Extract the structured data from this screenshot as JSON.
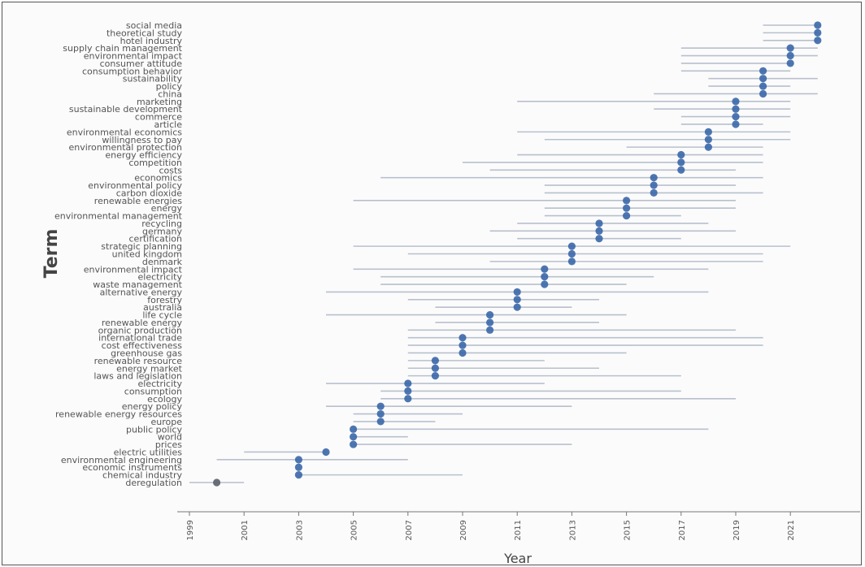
{
  "chart_data": {
    "type": "scatter",
    "title": "",
    "xlabel": "Year",
    "ylabel": "Term",
    "xlim": [
      1999,
      2023.5
    ],
    "x_ticks": [
      1999,
      2001,
      2003,
      2005,
      2007,
      2009,
      2011,
      2013,
      2015,
      2017,
      2019,
      2021
    ],
    "grid": false,
    "colors": {
      "point": "#3a67a8",
      "range": "#b8c0cc",
      "early_point": "#5a6068"
    },
    "points": [
      {
        "term": "social media",
        "start": 2020,
        "median": 2022,
        "end": 2022
      },
      {
        "term": "theoretical study",
        "start": 2020,
        "median": 2022,
        "end": 2022
      },
      {
        "term": "hotel industry",
        "start": 2020,
        "median": 2022,
        "end": 2022
      },
      {
        "term": "supply chain management",
        "start": 2017,
        "median": 2021,
        "end": 2022
      },
      {
        "term": "environmental impact",
        "start": 2017,
        "median": 2021,
        "end": 2022
      },
      {
        "term": "consumer attitude",
        "start": 2017,
        "median": 2021,
        "end": 2021
      },
      {
        "term": "consumption behavior",
        "start": 2017,
        "median": 2020,
        "end": 2021
      },
      {
        "term": "sustainability",
        "start": 2018,
        "median": 2020,
        "end": 2022
      },
      {
        "term": "policy",
        "start": 2018,
        "median": 2020,
        "end": 2021
      },
      {
        "term": "china",
        "start": 2016,
        "median": 2020,
        "end": 2022
      },
      {
        "term": "marketing",
        "start": 2011,
        "median": 2019,
        "end": 2021
      },
      {
        "term": "sustainable development",
        "start": 2016,
        "median": 2019,
        "end": 2021
      },
      {
        "term": "commerce",
        "start": 2017,
        "median": 2019,
        "end": 2021
      },
      {
        "term": "article",
        "start": 2017,
        "median": 2019,
        "end": 2020
      },
      {
        "term": "environmental economics",
        "start": 2011,
        "median": 2018,
        "end": 2021
      },
      {
        "term": "willingness to pay",
        "start": 2012,
        "median": 2018,
        "end": 2021
      },
      {
        "term": "environmental protection",
        "start": 2015,
        "median": 2018,
        "end": 2020
      },
      {
        "term": "energy efficiency",
        "start": 2011,
        "median": 2017,
        "end": 2020
      },
      {
        "term": "competition",
        "start": 2009,
        "median": 2017,
        "end": 2020
      },
      {
        "term": "costs",
        "start": 2010,
        "median": 2017,
        "end": 2019
      },
      {
        "term": "economics",
        "start": 2006,
        "median": 2016,
        "end": 2020
      },
      {
        "term": "environmental policy",
        "start": 2012,
        "median": 2016,
        "end": 2019
      },
      {
        "term": "carbon dioxide",
        "start": 2012,
        "median": 2016,
        "end": 2020
      },
      {
        "term": "renewable energies",
        "start": 2005,
        "median": 2015,
        "end": 2019
      },
      {
        "term": "energy",
        "start": 2012,
        "median": 2015,
        "end": 2019
      },
      {
        "term": "environmental management",
        "start": 2012,
        "median": 2015,
        "end": 2017
      },
      {
        "term": "recycling",
        "start": 2011,
        "median": 2014,
        "end": 2018
      },
      {
        "term": "germany",
        "start": 2010,
        "median": 2014,
        "end": 2019
      },
      {
        "term": "certification",
        "start": 2011,
        "median": 2014,
        "end": 2017
      },
      {
        "term": "strategic planning",
        "start": 2005,
        "median": 2013,
        "end": 2021
      },
      {
        "term": "united kingdom",
        "start": 2007,
        "median": 2013,
        "end": 2020
      },
      {
        "term": "denmark",
        "start": 2010,
        "median": 2013,
        "end": 2020
      },
      {
        "term": "environmental impact",
        "start": 2005,
        "median": 2012,
        "end": 2018
      },
      {
        "term": "electricity",
        "start": 2006,
        "median": 2012,
        "end": 2016
      },
      {
        "term": "waste management",
        "start": 2006,
        "median": 2012,
        "end": 2015
      },
      {
        "term": "alternative energy",
        "start": 2004,
        "median": 2011,
        "end": 2018
      },
      {
        "term": "forestry",
        "start": 2007,
        "median": 2011,
        "end": 2014
      },
      {
        "term": "australia",
        "start": 2008,
        "median": 2011,
        "end": 2013
      },
      {
        "term": "life cycle",
        "start": 2004,
        "median": 2010,
        "end": 2015
      },
      {
        "term": "renewable energy",
        "start": 2008,
        "median": 2010,
        "end": 2014
      },
      {
        "term": "organic production",
        "start": 2007,
        "median": 2010,
        "end": 2019
      },
      {
        "term": "international trade",
        "start": 2007,
        "median": 2009,
        "end": 2020
      },
      {
        "term": "cost effectiveness",
        "start": 2007,
        "median": 2009,
        "end": 2020
      },
      {
        "term": "greenhouse gas",
        "start": 2007,
        "median": 2009,
        "end": 2015
      },
      {
        "term": "renewable resource",
        "start": 2007,
        "median": 2008,
        "end": 2012
      },
      {
        "term": "energy market",
        "start": 2007,
        "median": 2008,
        "end": 2014
      },
      {
        "term": "laws and legislation",
        "start": 2007,
        "median": 2008,
        "end": 2017
      },
      {
        "term": "electricity",
        "start": 2004,
        "median": 2007,
        "end": 2012
      },
      {
        "term": "consumption",
        "start": 2006,
        "median": 2007,
        "end": 2017
      },
      {
        "term": "ecology",
        "start": 2006,
        "median": 2007,
        "end": 2019
      },
      {
        "term": "energy policy",
        "start": 2004,
        "median": 2006,
        "end": 2013
      },
      {
        "term": "renewable energy resources",
        "start": 2005,
        "median": 2006,
        "end": 2009
      },
      {
        "term": "europe",
        "start": 2005,
        "median": 2006,
        "end": 2008
      },
      {
        "term": "public policy",
        "start": 2005,
        "median": 2005,
        "end": 2018
      },
      {
        "term": "world",
        "start": 2005,
        "median": 2005,
        "end": 2007
      },
      {
        "term": "prices",
        "start": 2005,
        "median": 2005,
        "end": 2013
      },
      {
        "term": "electric utilities",
        "start": 2001,
        "median": 2004,
        "end": 2004
      },
      {
        "term": "environmental engineering",
        "start": 2000,
        "median": 2003,
        "end": 2007
      },
      {
        "term": "economic instruments",
        "start": 2003,
        "median": 2003,
        "end": 2003
      },
      {
        "term": "chemical industry",
        "start": 2003,
        "median": 2003,
        "end": 2009
      },
      {
        "term": "deregulation",
        "start": 1999,
        "median": 2000,
        "end": 2001
      }
    ]
  }
}
